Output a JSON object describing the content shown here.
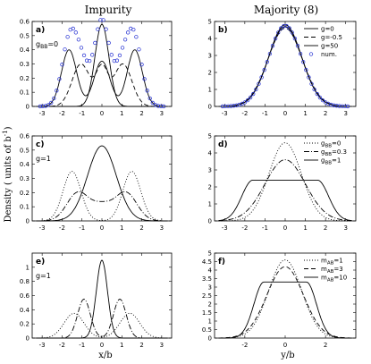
{
  "figure": {
    "col_titles": [
      "Impurity",
      "Majority (8)"
    ],
    "ylabel": "Density ( units of b",
    "ylabel_sup": "-1",
    "ylabel_close": ")",
    "xlabels": [
      "x/b",
      "y/b"
    ]
  },
  "chart_data": [
    {
      "id": "a",
      "type": "line",
      "panel_label": "a)",
      "annotation": "g",
      "annotation_sub": "BB",
      "annotation_value": "=0",
      "xlim": [
        -3.5,
        3.5
      ],
      "ylim": [
        0,
        0.6
      ],
      "xticks": [
        -3,
        -2,
        -1,
        0,
        1,
        2,
        3
      ],
      "yticks": [
        0,
        0.1,
        0.2,
        0.3,
        0.4,
        0.5,
        0.6
      ],
      "ytick_labels": [
        "0",
        "0.1",
        "0.2",
        "0.3",
        "0.4",
        "0.5",
        "0.6"
      ],
      "series": [
        {
          "style": "solid",
          "color": "#000000",
          "curve": {
            "kind": "multi",
            "peaks": [
              [
                -1.65,
                0.4,
                0.38
              ],
              [
                1.65,
                0.4,
                0.38
              ],
              [
                0,
                0.32,
                0.4
              ]
            ]
          }
        },
        {
          "style": "dashed",
          "color": "#000000",
          "curve": {
            "kind": "multi",
            "peaks": [
              [
                -1.05,
                0.3,
                0.45
              ],
              [
                1.05,
                0.3,
                0.45
              ],
              [
                0,
                0.26,
                0.3
              ]
            ]
          }
        },
        {
          "style": "solid",
          "color": "#000000",
          "curve": {
            "kind": "multi",
            "peaks": [
              [
                0,
                0.58,
                0.35
              ]
            ]
          }
        },
        {
          "style": "circles",
          "color": "#1f2bd1",
          "curve": {
            "kind": "multi",
            "peaks": [
              [
                -1.65,
                0.4,
                0.38
              ],
              [
                1.65,
                0.4,
                0.38
              ],
              [
                -1.05,
                0.3,
                0.45
              ],
              [
                1.05,
                0.3,
                0.45
              ],
              [
                0,
                0.58,
                0.35
              ]
            ]
          }
        }
      ]
    },
    {
      "id": "b",
      "type": "line",
      "panel_label": "b)",
      "xlim": [
        -3.5,
        3.5
      ],
      "ylim": [
        0,
        5
      ],
      "xticks": [
        -3,
        -2,
        -1,
        0,
        1,
        2,
        3
      ],
      "yticks": [
        0,
        1,
        2,
        3,
        4,
        5
      ],
      "ytick_labels": [
        "0",
        "1",
        "2",
        "3",
        "4",
        "5"
      ],
      "legend": [
        {
          "label": "g=0",
          "style": "solid",
          "color": "#000000"
        },
        {
          "label": "g=-0.5",
          "style": "dashed",
          "color": "#000000"
        },
        {
          "label": "g=50",
          "style": "solid",
          "color": "#000000"
        },
        {
          "label": "num.",
          "style": "circles",
          "color": "#1f2bd1"
        }
      ],
      "series": [
        {
          "style": "solid",
          "color": "#000000",
          "curve": {
            "kind": "multi",
            "peaks": [
              [
                0,
                4.8,
                0.82
              ]
            ]
          }
        },
        {
          "style": "dashed",
          "color": "#000000",
          "curve": {
            "kind": "multi",
            "peaks": [
              [
                0,
                4.6,
                0.85
              ]
            ]
          }
        },
        {
          "style": "solid",
          "color": "#000000",
          "curve": {
            "kind": "multi",
            "peaks": [
              [
                0,
                4.7,
                0.83
              ]
            ]
          }
        },
        {
          "style": "circles",
          "color": "#1f2bd1",
          "curve": {
            "kind": "multi",
            "peaks": [
              [
                0,
                4.75,
                0.82
              ]
            ]
          }
        }
      ]
    },
    {
      "id": "c",
      "type": "line",
      "panel_label": "c)",
      "annotation": "g=1",
      "xlim": [
        -3.5,
        3.5
      ],
      "ylim": [
        0,
        0.6
      ],
      "xticks": [
        -3,
        -2,
        -1,
        0,
        1,
        2,
        3
      ],
      "yticks": [
        0,
        0.1,
        0.2,
        0.3,
        0.4,
        0.5,
        0.6
      ],
      "ytick_labels": [
        "0",
        "0.1",
        "0.2",
        "0.3",
        "0.4",
        "0.5",
        "0.6"
      ],
      "series": [
        {
          "style": "dotted",
          "color": "#000000",
          "curve": {
            "kind": "multi",
            "peaks": [
              [
                -1.5,
                0.35,
                0.45
              ],
              [
                1.5,
                0.35,
                0.45
              ]
            ]
          }
        },
        {
          "style": "dashdot",
          "color": "#000000",
          "curve": {
            "kind": "multi",
            "peaks": [
              [
                -1.2,
                0.2,
                0.55
              ],
              [
                1.2,
                0.2,
                0.55
              ],
              [
                0,
                0.1,
                0.5
              ]
            ]
          }
        },
        {
          "style": "solid",
          "color": "#000000",
          "curve": {
            "kind": "multi",
            "peaks": [
              [
                0,
                0.53,
                0.72
              ]
            ]
          }
        }
      ]
    },
    {
      "id": "d",
      "type": "line",
      "panel_label": "d)",
      "xlim": [
        -3.5,
        3.5
      ],
      "ylim": [
        0,
        5
      ],
      "xticks": [
        -3,
        -2,
        -1,
        0,
        1,
        2,
        3
      ],
      "yticks": [
        0,
        1,
        2,
        3,
        4,
        5
      ],
      "ytick_labels": [
        "0",
        "1",
        "2",
        "3",
        "4",
        "5"
      ],
      "legend": [
        {
          "label": "g",
          "sub": "BB",
          "value": "=0",
          "style": "dotted",
          "color": "#000000"
        },
        {
          "label": "g",
          "sub": "BB",
          "value": "=0.3",
          "style": "dashdot",
          "color": "#000000"
        },
        {
          "label": "g",
          "sub": "BB",
          "value": "=1",
          "style": "solid",
          "color": "#000000"
        }
      ],
      "series": [
        {
          "style": "dotted",
          "color": "#000000",
          "curve": {
            "kind": "multi",
            "peaks": [
              [
                0,
                4.6,
                0.8
              ]
            ]
          }
        },
        {
          "style": "dashdot",
          "color": "#000000",
          "curve": {
            "kind": "multi",
            "peaks": [
              [
                0,
                3.6,
                1.0
              ]
            ]
          }
        },
        {
          "style": "solid",
          "color": "#000000",
          "curve": {
            "kind": "flat",
            "height": 2.4,
            "half": 1.6,
            "edge": 0.55
          }
        }
      ]
    },
    {
      "id": "e",
      "type": "line",
      "panel_label": "e)",
      "annotation": "g=1",
      "xlim": [
        -3.5,
        3.5
      ],
      "ylim": [
        0,
        1.2
      ],
      "xticks": [
        -3,
        -2,
        -1,
        0,
        1,
        2,
        3
      ],
      "yticks": [
        0,
        0.2,
        0.4,
        0.6,
        0.8,
        1
      ],
      "ytick_labels": [
        "0",
        "0.2",
        "0.4",
        "0.6",
        "0.8",
        "1"
      ],
      "series": [
        {
          "style": "dotted",
          "color": "#000000",
          "curve": {
            "kind": "multi",
            "peaks": [
              [
                -1.4,
                0.35,
                0.5
              ],
              [
                1.4,
                0.35,
                0.5
              ]
            ]
          }
        },
        {
          "style": "dashdot",
          "color": "#000000",
          "curve": {
            "kind": "multi",
            "peaks": [
              [
                -0.9,
                0.55,
                0.32
              ],
              [
                0.9,
                0.55,
                0.32
              ]
            ]
          }
        },
        {
          "style": "solid",
          "color": "#000000",
          "curve": {
            "kind": "multi",
            "peaks": [
              [
                0,
                1.1,
                0.28
              ]
            ]
          }
        }
      ]
    },
    {
      "id": "f",
      "type": "line",
      "panel_label": "f)",
      "xlim": [
        -3.5,
        3.5
      ],
      "ylim": [
        0,
        5
      ],
      "xticks": [
        -2,
        0,
        2
      ],
      "yticks": [
        0,
        0.5,
        1,
        1.5,
        2,
        2.5,
        3,
        3.5,
        4,
        4.5,
        5
      ],
      "ytick_labels": [
        "0",
        "0.5",
        "1",
        "1.5",
        "2",
        "2.5",
        "3",
        "3.5",
        "4",
        "4.5",
        "5"
      ],
      "legend": [
        {
          "label": "m",
          "sub": "AB",
          "value": "=1",
          "style": "dotted",
          "color": "#000000"
        },
        {
          "label": "m",
          "sub": "AB",
          "value": "=3",
          "style": "dashed",
          "color": "#000000"
        },
        {
          "label": "m",
          "sub": "AB",
          "value": "=10",
          "style": "solid",
          "color": "#000000"
        }
      ],
      "series": [
        {
          "style": "dotted",
          "color": "#000000",
          "curve": {
            "kind": "multi",
            "peaks": [
              [
                0,
                4.6,
                0.82
              ]
            ]
          }
        },
        {
          "style": "dashed",
          "color": "#000000",
          "curve": {
            "kind": "multi",
            "peaks": [
              [
                0,
                4.2,
                0.9
              ]
            ]
          }
        },
        {
          "style": "solid",
          "color": "#000000",
          "curve": {
            "kind": "flat",
            "height": 3.3,
            "half": 1.05,
            "edge": 0.5
          }
        }
      ]
    }
  ]
}
